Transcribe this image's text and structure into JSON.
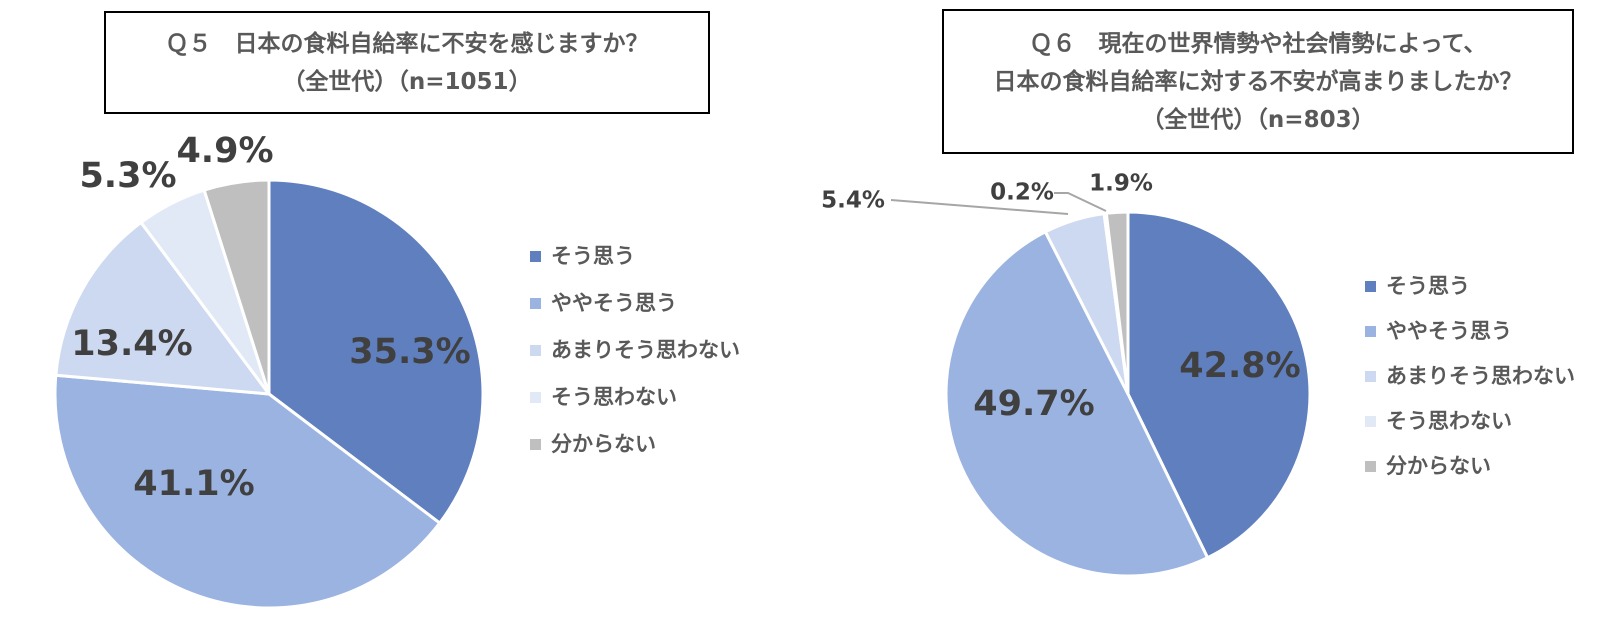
{
  "charts": [
    {
      "title_lines": [
        "Ｑ５　日本の食料自給率に不安を感じますか？",
        "（全世代）（n=1051）"
      ]
    },
    {
      "title_lines": [
        "Ｑ６　現在の世界情勢や社会情勢によって、",
        "日本の食料自給率に対する不安が高まりましたか？",
        "（全世代）（n=803）"
      ]
    }
  ],
  "colors": [
    "#5f7fbf",
    "#9bb3e0",
    "#cdd9f0",
    "#e2e9f6",
    "#bfbfbf"
  ],
  "chart_data": [
    {
      "type": "pie",
      "title": "Ｑ５　日本の食料自給率に不安を感じますか？（全世代）（n=1051）",
      "categories": [
        "そう思う",
        "ややそう思う",
        "あまりそう思わない",
        "そう思わない",
        "分からない"
      ],
      "values": [
        35.3,
        41.1,
        13.4,
        5.3,
        4.9
      ],
      "labels": [
        "35.3%",
        "41.1%",
        "13.4%",
        "5.3%",
        "4.9%"
      ],
      "legend": "right"
    },
    {
      "type": "pie",
      "title": "Ｑ６　現在の世界情勢や社会情勢によって、日本の食料自給率に対する不安が高まりましたか？（全世代）（n=803）",
      "categories": [
        "そう思う",
        "ややそう思う",
        "あまりそう思わない",
        "そう思わない",
        "分からない"
      ],
      "values": [
        42.8,
        49.7,
        5.4,
        0.2,
        1.9
      ],
      "labels": [
        "42.8%",
        "49.7%",
        "5.4%",
        "0.2%",
        "1.9%"
      ],
      "legend": "right"
    }
  ]
}
